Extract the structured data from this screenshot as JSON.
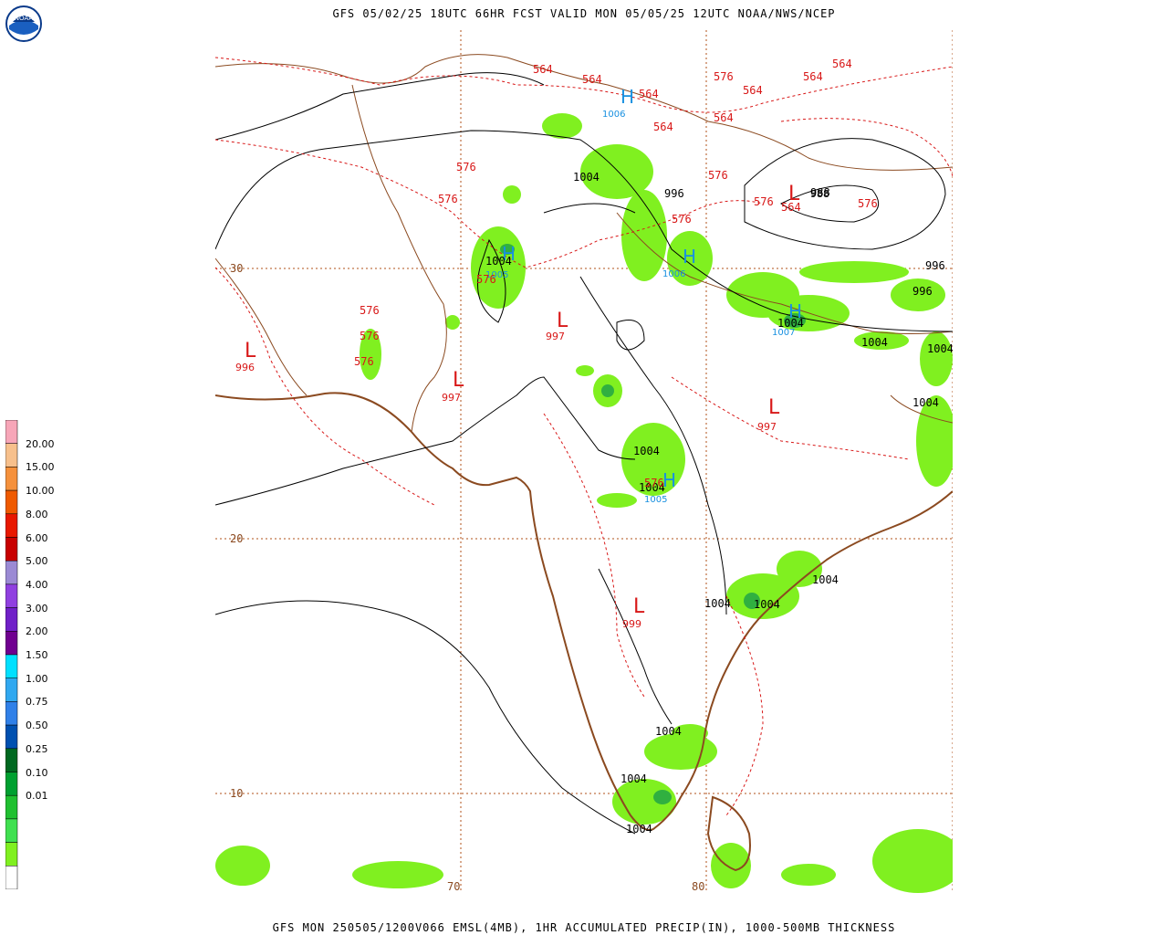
{
  "header": {
    "title": "GFS 05/02/25 18UTC 66HR FCST VALID MON 05/05/25 12UTC NOAA/NWS/NCEP"
  },
  "footer": {
    "text": "GFS MON 250505/1200V066 EMSL(4MB), 1HR ACCUMULATED PRECIP(IN), 1000-500MB THICKNESS"
  },
  "logo": {
    "text": "NOAA"
  },
  "grid_labels": {
    "lat": [
      "30",
      "20",
      "10"
    ],
    "lon": [
      "70",
      "80"
    ]
  },
  "legend": {
    "labels": [
      "20.00",
      "15.00",
      "10.00",
      "8.00",
      "6.00",
      "5.00",
      "4.00",
      "3.00",
      "2.00",
      "1.50",
      "1.00",
      "0.75",
      "0.50",
      "0.25",
      "0.10",
      "0.01"
    ],
    "colors": [
      "#f7a6b8",
      "#f7c08c",
      "#f5913c",
      "#ef5a00",
      "#e81800",
      "#c80000",
      "#9b8ad4",
      "#9040e0",
      "#7020c8",
      "#700090",
      "#00e0ff",
      "#30a8f0",
      "#3080e8",
      "#0050b0",
      "#006820",
      "#00a030",
      "#20c030",
      "#40e050",
      "#80f020",
      "#ffffff"
    ]
  },
  "pressure_centers": [
    {
      "type": "L",
      "value": "996",
      "color": "#d81818"
    },
    {
      "type": "L",
      "value": "997",
      "color": "#d81818"
    },
    {
      "type": "L",
      "value": "997",
      "color": "#d81818"
    },
    {
      "type": "L",
      "value": "997",
      "color": "#d81818"
    },
    {
      "type": "L",
      "value": "999",
      "color": "#d81818"
    },
    {
      "type": "L",
      "value": "988",
      "color": "#d81818"
    },
    {
      "type": "H",
      "value": "1006",
      "color": "#1890e0"
    },
    {
      "type": "H",
      "value": "1005",
      "color": "#1890e0"
    },
    {
      "type": "H",
      "value": "1006",
      "color": "#1890e0"
    },
    {
      "type": "H",
      "value": "1005",
      "color": "#1890e0"
    },
    {
      "type": "H",
      "value": "1007",
      "color": "#1890e0"
    }
  ],
  "isobar_labels": [
    "1004",
    "1004",
    "996",
    "1004",
    "1004",
    "1004",
    "1004",
    "1004",
    "1004",
    "1004",
    "1004",
    "1004",
    "1004",
    "996",
    "996",
    "988",
    "1004",
    "1004"
  ],
  "thickness_labels": [
    "564",
    "564",
    "564",
    "564",
    "564",
    "564",
    "564",
    "564",
    "576",
    "576",
    "576",
    "576",
    "576",
    "576",
    "576",
    "576",
    "576",
    "576",
    "576",
    "576",
    "564"
  ],
  "colors": {
    "coast": "#8b4a20",
    "isobar": "#000000",
    "thickness": "#d81818",
    "grid": "#b05018",
    "precip_light": "#80f020",
    "precip_mid": "#40d040",
    "precip_dark": "#00a030"
  }
}
